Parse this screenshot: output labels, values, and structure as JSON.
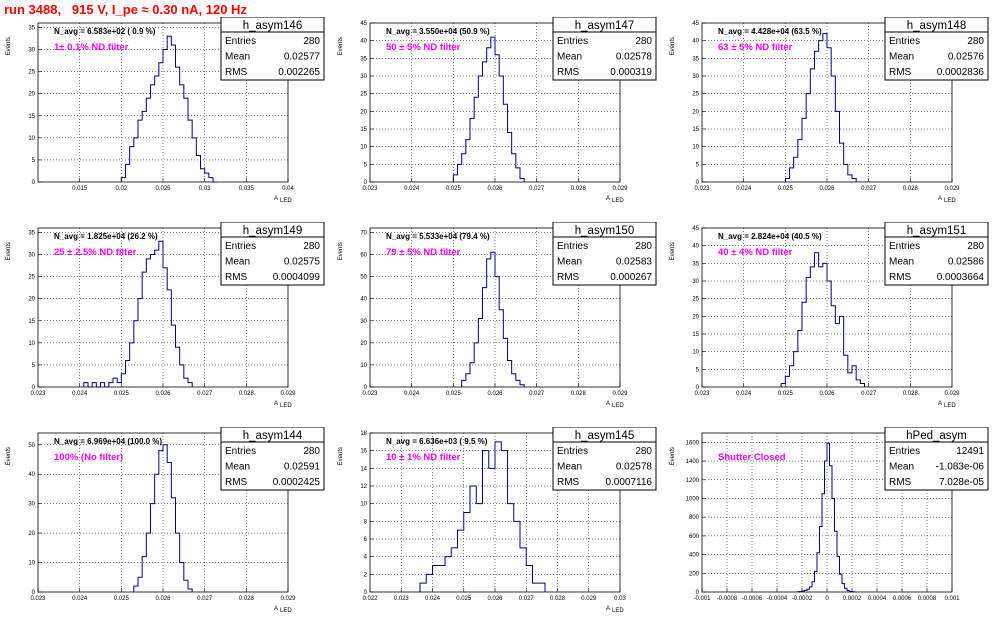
{
  "header": {
    "run_title": "run 3488,   915 V, I_pe ≈ 0.30 nA, 120 Hz"
  },
  "stat_labels": {
    "entries": "Entries",
    "mean": "Mean",
    "rms": "RMS"
  },
  "chart_data": [
    {
      "type": "histogram",
      "name": "h_asym146",
      "navg": "N_avg = 6.583e+02 ( 0.9 %)",
      "filter": "1± 0.1% ND filter",
      "stats": {
        "entries": "280",
        "mean": "0.02577",
        "rms": "0.002265"
      },
      "ylabel": "Events",
      "xlabel": "A",
      "xlabel_sub": "LED",
      "xlim": [
        0.01,
        0.04
      ],
      "ylim": [
        0,
        36
      ],
      "xticks": [
        0.015,
        0.02,
        0.025,
        0.03,
        0.035,
        0.04
      ],
      "xtick_labels": [
        "0.015",
        "0.02",
        "0.025",
        "0.03",
        "0.035",
        "0.04"
      ],
      "yticks": [
        0,
        5,
        10,
        15,
        20,
        25,
        30,
        35
      ],
      "hist": {
        "x": [
          0.02,
          0.0205,
          0.021,
          0.0215,
          0.022,
          0.0225,
          0.023,
          0.0235,
          0.024,
          0.0245,
          0.025,
          0.0255,
          0.026,
          0.0265,
          0.027,
          0.0275,
          0.028,
          0.0285,
          0.029,
          0.0295,
          0.03,
          0.0305,
          0.031
        ],
        "counts": [
          1,
          4,
          8,
          10,
          14,
          16,
          19,
          22,
          24,
          27,
          30,
          33,
          31,
          26,
          22,
          19,
          14,
          10,
          6,
          3,
          2,
          1,
          0
        ]
      }
    },
    {
      "type": "histogram",
      "name": "h_asym147",
      "navg": "N_avg = 3.550e+04 (50.9 %)",
      "filter": "50 ± 5% ND filter",
      "stats": {
        "entries": "280",
        "mean": "0.02578",
        "rms": "0.000319"
      },
      "ylabel": "Events",
      "xlabel": "A",
      "xlabel_sub": "LED",
      "xlim": [
        0.023,
        0.029
      ],
      "ylim": [
        0,
        45
      ],
      "xticks": [
        0.023,
        0.024,
        0.025,
        0.026,
        0.027,
        0.028,
        0.029
      ],
      "xtick_labels": [
        "0.023",
        "0.024",
        "0.025",
        "0.026",
        "0.027",
        "0.028",
        "0.029"
      ],
      "yticks": [
        0,
        5,
        10,
        15,
        20,
        25,
        30,
        35,
        40,
        45
      ],
      "hist": {
        "x": [
          0.025,
          0.0251,
          0.0252,
          0.0253,
          0.0254,
          0.0255,
          0.0256,
          0.0257,
          0.0258,
          0.0259,
          0.026,
          0.0261,
          0.0262,
          0.0263,
          0.0264,
          0.0265,
          0.0266
        ],
        "counts": [
          2,
          5,
          8,
          12,
          18,
          24,
          30,
          34,
          38,
          41,
          36,
          30,
          22,
          14,
          8,
          4,
          1
        ]
      }
    },
    {
      "type": "histogram",
      "name": "h_asym148",
      "navg": "N_avg = 4.428e+04 (63.5 %)",
      "filter": "63 ± 5% ND filter",
      "stats": {
        "entries": "280",
        "mean": "0.02576",
        "rms": "0.0002836"
      },
      "ylabel": "Events",
      "xlabel": "A",
      "xlabel_sub": "LED",
      "xlim": [
        0.023,
        0.029
      ],
      "ylim": [
        0,
        45
      ],
      "xticks": [
        0.023,
        0.024,
        0.025,
        0.026,
        0.027,
        0.028,
        0.029
      ],
      "xtick_labels": [
        "0.023",
        "0.024",
        "0.025",
        "0.026",
        "0.027",
        "0.028",
        "0.029"
      ],
      "yticks": [
        0,
        5,
        10,
        15,
        20,
        25,
        30,
        35,
        40,
        45
      ],
      "hist": {
        "x": [
          0.025,
          0.0251,
          0.0252,
          0.0253,
          0.0254,
          0.0255,
          0.0256,
          0.0257,
          0.0258,
          0.0259,
          0.026,
          0.0261,
          0.0262,
          0.0263,
          0.0264,
          0.0265,
          0.0266
        ],
        "counts": [
          1,
          4,
          7,
          12,
          18,
          25,
          32,
          37,
          40,
          42,
          38,
          30,
          20,
          11,
          5,
          2,
          1
        ]
      }
    },
    {
      "type": "histogram",
      "name": "h_asym149",
      "navg": "N_avg = 1.825e+04 (26.2 %)",
      "filter": "25 ± 2.5% ND filter",
      "stats": {
        "entries": "280",
        "mean": "0.02575",
        "rms": "0.0004099"
      },
      "ylabel": "Events",
      "xlabel": "A",
      "xlabel_sub": "LED",
      "xlim": [
        0.023,
        0.029
      ],
      "ylim": [
        0,
        36
      ],
      "xticks": [
        0.023,
        0.024,
        0.025,
        0.026,
        0.027,
        0.028,
        0.029
      ],
      "xtick_labels": [
        "0.023",
        "0.024",
        "0.025",
        "0.026",
        "0.027",
        "0.028",
        "0.029"
      ],
      "yticks": [
        0,
        5,
        10,
        15,
        20,
        25,
        30,
        35
      ],
      "hist": {
        "x": [
          0.0241,
          0.0242,
          0.0243,
          0.0244,
          0.0245,
          0.0246,
          0.0247,
          0.0248,
          0.0249,
          0.025,
          0.0251,
          0.0252,
          0.0253,
          0.0254,
          0.0255,
          0.0256,
          0.0257,
          0.0258,
          0.0259,
          0.026,
          0.0261,
          0.0262,
          0.0263,
          0.0264,
          0.0265,
          0.0266
        ],
        "counts": [
          1,
          0,
          1,
          0,
          1,
          0,
          1,
          2,
          1,
          3,
          6,
          10,
          15,
          20,
          26,
          29,
          30,
          31,
          33,
          27,
          22,
          14,
          9,
          5,
          2,
          1
        ]
      }
    },
    {
      "type": "histogram",
      "name": "h_asym150",
      "navg": "N_avg = 5.533e+04 (79.4 %)",
      "filter": "79 ± 5% ND filter",
      "stats": {
        "entries": "280",
        "mean": "0.02583",
        "rms": "0.000267"
      },
      "ylabel": "Events",
      "xlabel": "A",
      "xlabel_sub": "LED",
      "xlim": [
        0.023,
        0.029
      ],
      "ylim": [
        0,
        72
      ],
      "xticks": [
        0.023,
        0.024,
        0.025,
        0.026,
        0.027,
        0.028,
        0.029
      ],
      "xtick_labels": [
        "0.023",
        "0.024",
        "0.025",
        "0.026",
        "0.027",
        "0.028",
        "0.029"
      ],
      "yticks": [
        0,
        10,
        20,
        30,
        40,
        50,
        60,
        70
      ],
      "hist": {
        "x": [
          0.0252,
          0.0253,
          0.0254,
          0.0255,
          0.0256,
          0.0257,
          0.0258,
          0.0259,
          0.026,
          0.0261,
          0.0262,
          0.0263,
          0.0264,
          0.0265,
          0.0266
        ],
        "counts": [
          3,
          6,
          11,
          20,
          31,
          45,
          58,
          61,
          50,
          35,
          22,
          12,
          6,
          3,
          1
        ]
      }
    },
    {
      "type": "histogram",
      "name": "h_asym151",
      "navg": "N_avg = 2.824e+04 (40.5 %)",
      "filter": "40 ± 4% ND filter",
      "stats": {
        "entries": "280",
        "mean": "0.02586",
        "rms": "0.0003664"
      },
      "ylabel": "Events",
      "xlabel": "A",
      "xlabel_sub": "LED",
      "xlim": [
        0.023,
        0.029
      ],
      "ylim": [
        0,
        45
      ],
      "xticks": [
        0.023,
        0.024,
        0.025,
        0.026,
        0.027,
        0.028,
        0.029
      ],
      "xtick_labels": [
        "0.023",
        "0.024",
        "0.025",
        "0.026",
        "0.027",
        "0.028",
        "0.029"
      ],
      "yticks": [
        0,
        5,
        10,
        15,
        20,
        25,
        30,
        35,
        40,
        45
      ],
      "hist": {
        "x": [
          0.0249,
          0.025,
          0.0251,
          0.0252,
          0.0253,
          0.0254,
          0.0255,
          0.0256,
          0.0257,
          0.0258,
          0.0259,
          0.026,
          0.0261,
          0.0262,
          0.0263,
          0.0264,
          0.0265,
          0.0266,
          0.0267,
          0.0268
        ],
        "counts": [
          1,
          3,
          6,
          10,
          16,
          24,
          31,
          34,
          38,
          34,
          35,
          30,
          23,
          18,
          20,
          9,
          4,
          6,
          2,
          1
        ]
      }
    },
    {
      "type": "histogram",
      "name": "h_asym144",
      "navg": "N_avg = 6.969e+04 (100.0 %)",
      "filter": "100% (No filter)",
      "stats": {
        "entries": "280",
        "mean": "0.02591",
        "rms": "0.0002425"
      },
      "ylabel": "Events",
      "xlabel": "A",
      "xlabel_sub": "LED",
      "xlim": [
        0.023,
        0.029
      ],
      "ylim": [
        0,
        54
      ],
      "xticks": [
        0.023,
        0.024,
        0.025,
        0.026,
        0.027,
        0.028,
        0.029
      ],
      "xtick_labels": [
        "0.023",
        "0.024",
        "0.025",
        "0.026",
        "0.027",
        "0.028",
        "0.029"
      ],
      "yticks": [
        0,
        10,
        20,
        30,
        40,
        50
      ],
      "hist": {
        "x": [
          0.0253,
          0.0254,
          0.0255,
          0.0256,
          0.0257,
          0.0258,
          0.0259,
          0.026,
          0.0261,
          0.0262,
          0.0263,
          0.0264,
          0.0265,
          0.0266
        ],
        "counts": [
          2,
          5,
          12,
          20,
          30,
          40,
          48,
          50,
          44,
          32,
          20,
          10,
          4,
          1
        ]
      }
    },
    {
      "type": "histogram",
      "name": "h_asym145",
      "navg": "N_avg = 6.636e+03 ( 9.5 %)",
      "filter": "10 ± 1% ND filter",
      "stats": {
        "entries": "280",
        "mean": "0.02578",
        "rms": "0.0007116"
      },
      "ylabel": "Events",
      "xlabel": "A",
      "xlabel_sub": "LED",
      "xlim": [
        0.022,
        0.03
      ],
      "ylim": [
        0,
        18
      ],
      "xticks": [
        0.022,
        0.023,
        0.024,
        0.025,
        0.026,
        0.027,
        0.028,
        0.029,
        0.03
      ],
      "xtick_labels": [
        "0.022",
        "0.023",
        "0.024",
        "0.025",
        "0.026",
        "0.027",
        "0.028",
        "0.029",
        "0.03"
      ],
      "yticks": [
        0,
        2,
        4,
        6,
        8,
        10,
        12,
        14,
        16,
        18
      ],
      "hist": {
        "x": [
          0.0236,
          0.0238,
          0.024,
          0.0242,
          0.0244,
          0.0246,
          0.0248,
          0.025,
          0.0252,
          0.0254,
          0.0256,
          0.0258,
          0.026,
          0.0262,
          0.0264,
          0.0266,
          0.0268,
          0.027,
          0.0272,
          0.0274
        ],
        "counts": [
          1,
          2,
          3,
          3,
          4,
          5,
          7,
          9,
          12,
          10,
          16,
          14,
          17,
          16,
          10,
          8,
          5,
          3,
          1,
          1
        ]
      }
    },
    {
      "type": "histogram",
      "name": "hPed_asym",
      "navg": "",
      "filter": "Shutter Closed",
      "stats": {
        "entries": "12491",
        "mean": "-1.083e-06",
        "rms": "7.028e-05"
      },
      "ylabel": "Events",
      "xlabel": "",
      "xlabel_sub": "",
      "xlim": [
        -0.001,
        0.001
      ],
      "ylim": [
        0,
        1700
      ],
      "xticks": [
        -0.001,
        -0.0008,
        -0.0006,
        -0.0004,
        -0.0002,
        0,
        0.0002,
        0.0004,
        0.0006,
        0.0008,
        0.001
      ],
      "xtick_labels": [
        "-0.001",
        "-0.0008",
        "-0.0006",
        "-0.0004",
        "-0.0002",
        "0",
        "0.0002",
        "0.0004",
        "0.0006",
        "0.0008",
        "0.001"
      ],
      "yticks": [
        0,
        200,
        400,
        600,
        800,
        1000,
        1200,
        1400,
        1600
      ],
      "hist": {
        "x": [
          -0.00024,
          -0.00022,
          -0.0002,
          -0.00018,
          -0.00016,
          -0.00014,
          -0.00012,
          -0.0001,
          -8e-05,
          -6e-05,
          -4e-05,
          -2e-05,
          0,
          2e-05,
          4e-05,
          6e-05,
          8e-05,
          0.0001,
          0.00012,
          0.00014,
          0.00016,
          0.00018,
          0.0002
        ],
        "counts": [
          2,
          5,
          10,
          18,
          30,
          55,
          110,
          220,
          420,
          700,
          1050,
          1400,
          1590,
          1350,
          1000,
          650,
          380,
          190,
          90,
          40,
          15,
          6,
          2
        ]
      }
    }
  ]
}
